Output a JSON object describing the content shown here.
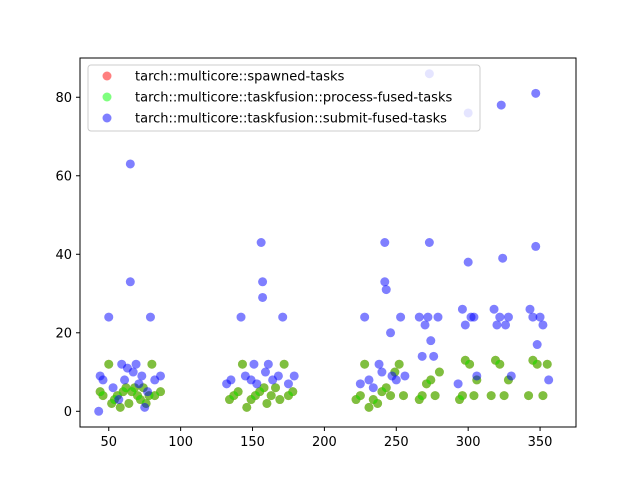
{
  "chart_data": {
    "type": "scatter",
    "xlim": [
      30,
      375
    ],
    "ylim": [
      -4,
      90
    ],
    "xticks": [
      50,
      100,
      150,
      200,
      250,
      300,
      350
    ],
    "yticks": [
      0,
      20,
      40,
      60,
      80
    ],
    "grid": false,
    "legend_position": "top-left",
    "series": [
      {
        "name": "tarch::multicore::spawned-tasks",
        "color": "#ff0000",
        "points": [
          [
            44,
            5
          ],
          [
            46,
            4
          ],
          [
            50,
            12
          ],
          [
            52,
            2
          ],
          [
            54,
            3
          ],
          [
            56,
            4
          ],
          [
            58,
            1
          ],
          [
            60,
            5
          ],
          [
            62,
            6
          ],
          [
            64,
            2
          ],
          [
            66,
            5
          ],
          [
            68,
            6
          ],
          [
            70,
            4
          ],
          [
            72,
            3
          ],
          [
            74,
            6
          ],
          [
            76,
            2
          ],
          [
            78,
            4
          ],
          [
            80,
            12
          ],
          [
            82,
            4
          ],
          [
            86,
            5
          ],
          [
            134,
            3
          ],
          [
            137,
            4
          ],
          [
            140,
            5
          ],
          [
            143,
            12
          ],
          [
            146,
            1
          ],
          [
            149,
            3
          ],
          [
            152,
            4
          ],
          [
            155,
            5
          ],
          [
            158,
            6
          ],
          [
            160,
            2
          ],
          [
            163,
            4
          ],
          [
            166,
            6
          ],
          [
            169,
            3
          ],
          [
            172,
            12
          ],
          [
            175,
            4
          ],
          [
            178,
            5
          ],
          [
            222,
            3
          ],
          [
            225,
            4
          ],
          [
            228,
            12
          ],
          [
            231,
            1
          ],
          [
            234,
            3
          ],
          [
            237,
            2
          ],
          [
            240,
            5
          ],
          [
            243,
            6
          ],
          [
            246,
            4
          ],
          [
            249,
            10
          ],
          [
            252,
            12
          ],
          [
            255,
            4
          ],
          [
            266,
            3
          ],
          [
            268,
            4
          ],
          [
            271,
            7
          ],
          [
            274,
            8
          ],
          [
            277,
            4
          ],
          [
            280,
            10
          ],
          [
            294,
            3
          ],
          [
            296,
            4
          ],
          [
            298,
            13
          ],
          [
            301,
            12
          ],
          [
            304,
            4
          ],
          [
            306,
            8
          ],
          [
            316,
            4
          ],
          [
            319,
            13
          ],
          [
            322,
            12
          ],
          [
            325,
            4
          ],
          [
            328,
            8
          ],
          [
            342,
            4
          ],
          [
            345,
            13
          ],
          [
            348,
            12
          ],
          [
            352,
            4
          ],
          [
            355,
            12
          ]
        ]
      },
      {
        "name": "tarch::multicore::taskfusion::process-fused-tasks",
        "color": "#00ff00",
        "points": [
          [
            44,
            5
          ],
          [
            46,
            4
          ],
          [
            50,
            12
          ],
          [
            52,
            2
          ],
          [
            54,
            3
          ],
          [
            56,
            4
          ],
          [
            58,
            1
          ],
          [
            60,
            5
          ],
          [
            62,
            6
          ],
          [
            64,
            2
          ],
          [
            66,
            5
          ],
          [
            68,
            6
          ],
          [
            70,
            4
          ],
          [
            72,
            3
          ],
          [
            74,
            6
          ],
          [
            76,
            2
          ],
          [
            78,
            4
          ],
          [
            80,
            12
          ],
          [
            82,
            4
          ],
          [
            86,
            5
          ],
          [
            134,
            3
          ],
          [
            137,
            4
          ],
          [
            140,
            5
          ],
          [
            143,
            12
          ],
          [
            146,
            1
          ],
          [
            149,
            3
          ],
          [
            152,
            4
          ],
          [
            155,
            5
          ],
          [
            158,
            6
          ],
          [
            160,
            2
          ],
          [
            163,
            4
          ],
          [
            166,
            6
          ],
          [
            169,
            3
          ],
          [
            172,
            12
          ],
          [
            175,
            4
          ],
          [
            178,
            5
          ],
          [
            222,
            3
          ],
          [
            225,
            4
          ],
          [
            228,
            12
          ],
          [
            231,
            1
          ],
          [
            234,
            3
          ],
          [
            237,
            2
          ],
          [
            240,
            5
          ],
          [
            243,
            6
          ],
          [
            246,
            4
          ],
          [
            249,
            10
          ],
          [
            252,
            12
          ],
          [
            255,
            4
          ],
          [
            266,
            3
          ],
          [
            268,
            4
          ],
          [
            271,
            7
          ],
          [
            274,
            8
          ],
          [
            277,
            4
          ],
          [
            280,
            10
          ],
          [
            294,
            3
          ],
          [
            296,
            4
          ],
          [
            298,
            13
          ],
          [
            301,
            12
          ],
          [
            304,
            4
          ],
          [
            306,
            8
          ],
          [
            316,
            4
          ],
          [
            319,
            13
          ],
          [
            322,
            12
          ],
          [
            325,
            4
          ],
          [
            328,
            8
          ],
          [
            342,
            4
          ],
          [
            345,
            13
          ],
          [
            348,
            12
          ],
          [
            352,
            4
          ],
          [
            355,
            12
          ]
        ]
      },
      {
        "name": "tarch::multicore::taskfusion::submit-fused-tasks",
        "color": "#0000ff",
        "points": [
          [
            43,
            0
          ],
          [
            44,
            9
          ],
          [
            46,
            8
          ],
          [
            50,
            24
          ],
          [
            53,
            6
          ],
          [
            57,
            3
          ],
          [
            59,
            12
          ],
          [
            61,
            8
          ],
          [
            63,
            11
          ],
          [
            65,
            63
          ],
          [
            65,
            33
          ],
          [
            67,
            10
          ],
          [
            69,
            12
          ],
          [
            71,
            7
          ],
          [
            73,
            9
          ],
          [
            75,
            1
          ],
          [
            77,
            5
          ],
          [
            79,
            24
          ],
          [
            82,
            8
          ],
          [
            86,
            9
          ],
          [
            132,
            7
          ],
          [
            135,
            8
          ],
          [
            142,
            24
          ],
          [
            145,
            9
          ],
          [
            149,
            8
          ],
          [
            151,
            12
          ],
          [
            153,
            7
          ],
          [
            156,
            43
          ],
          [
            157,
            33
          ],
          [
            157,
            29
          ],
          [
            159,
            10
          ],
          [
            161,
            12
          ],
          [
            164,
            8
          ],
          [
            168,
            9
          ],
          [
            171,
            24
          ],
          [
            175,
            7
          ],
          [
            179,
            9
          ],
          [
            225,
            7
          ],
          [
            228,
            24
          ],
          [
            231,
            8
          ],
          [
            234,
            6
          ],
          [
            238,
            12
          ],
          [
            240,
            10
          ],
          [
            242,
            43
          ],
          [
            242,
            33
          ],
          [
            243,
            31
          ],
          [
            246,
            20
          ],
          [
            247,
            9
          ],
          [
            250,
            8
          ],
          [
            253,
            24
          ],
          [
            256,
            9
          ],
          [
            266,
            24
          ],
          [
            268,
            14
          ],
          [
            270,
            22
          ],
          [
            272,
            24
          ],
          [
            273,
            86
          ],
          [
            273,
            43
          ],
          [
            274,
            18
          ],
          [
            276,
            14
          ],
          [
            279,
            24
          ],
          [
            293,
            7
          ],
          [
            296,
            26
          ],
          [
            298,
            22
          ],
          [
            300,
            76
          ],
          [
            300,
            38
          ],
          [
            302,
            24
          ],
          [
            304,
            24
          ],
          [
            306,
            9
          ],
          [
            318,
            26
          ],
          [
            320,
            22
          ],
          [
            322,
            24
          ],
          [
            323,
            78
          ],
          [
            324,
            39
          ],
          [
            326,
            22
          ],
          [
            328,
            24
          ],
          [
            330,
            9
          ],
          [
            343,
            26
          ],
          [
            345,
            24
          ],
          [
            347,
            81
          ],
          [
            347,
            42
          ],
          [
            348,
            17
          ],
          [
            350,
            24
          ],
          [
            352,
            22
          ],
          [
            356,
            8
          ]
        ]
      }
    ]
  }
}
